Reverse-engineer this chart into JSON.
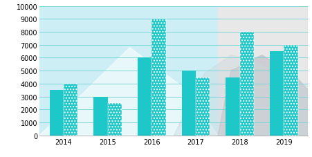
{
  "years": [
    "2014",
    "2015",
    "2016",
    "2017",
    "2018",
    "2019"
  ],
  "store_a": [
    3500,
    3000,
    6000,
    5000,
    4500,
    6500
  ],
  "store_b": [
    4000,
    2500,
    9000,
    4500,
    8000,
    7000
  ],
  "color_a": "#1fc8c8",
  "color_b": "#1fc8c8",
  "ylim": [
    0,
    10000
  ],
  "yticks": [
    0,
    1000,
    2000,
    3000,
    4000,
    5000,
    6000,
    7000,
    8000,
    9000,
    10000
  ],
  "bg_left": "#ceeef5",
  "bg_right": "#e8e8e8",
  "bg_split_idx": 3.5,
  "bar_width": 0.32,
  "grid_color": "#6ad4d4",
  "tick_fontsize": 7,
  "xlim_left": -0.55,
  "xlim_right": 5.55
}
